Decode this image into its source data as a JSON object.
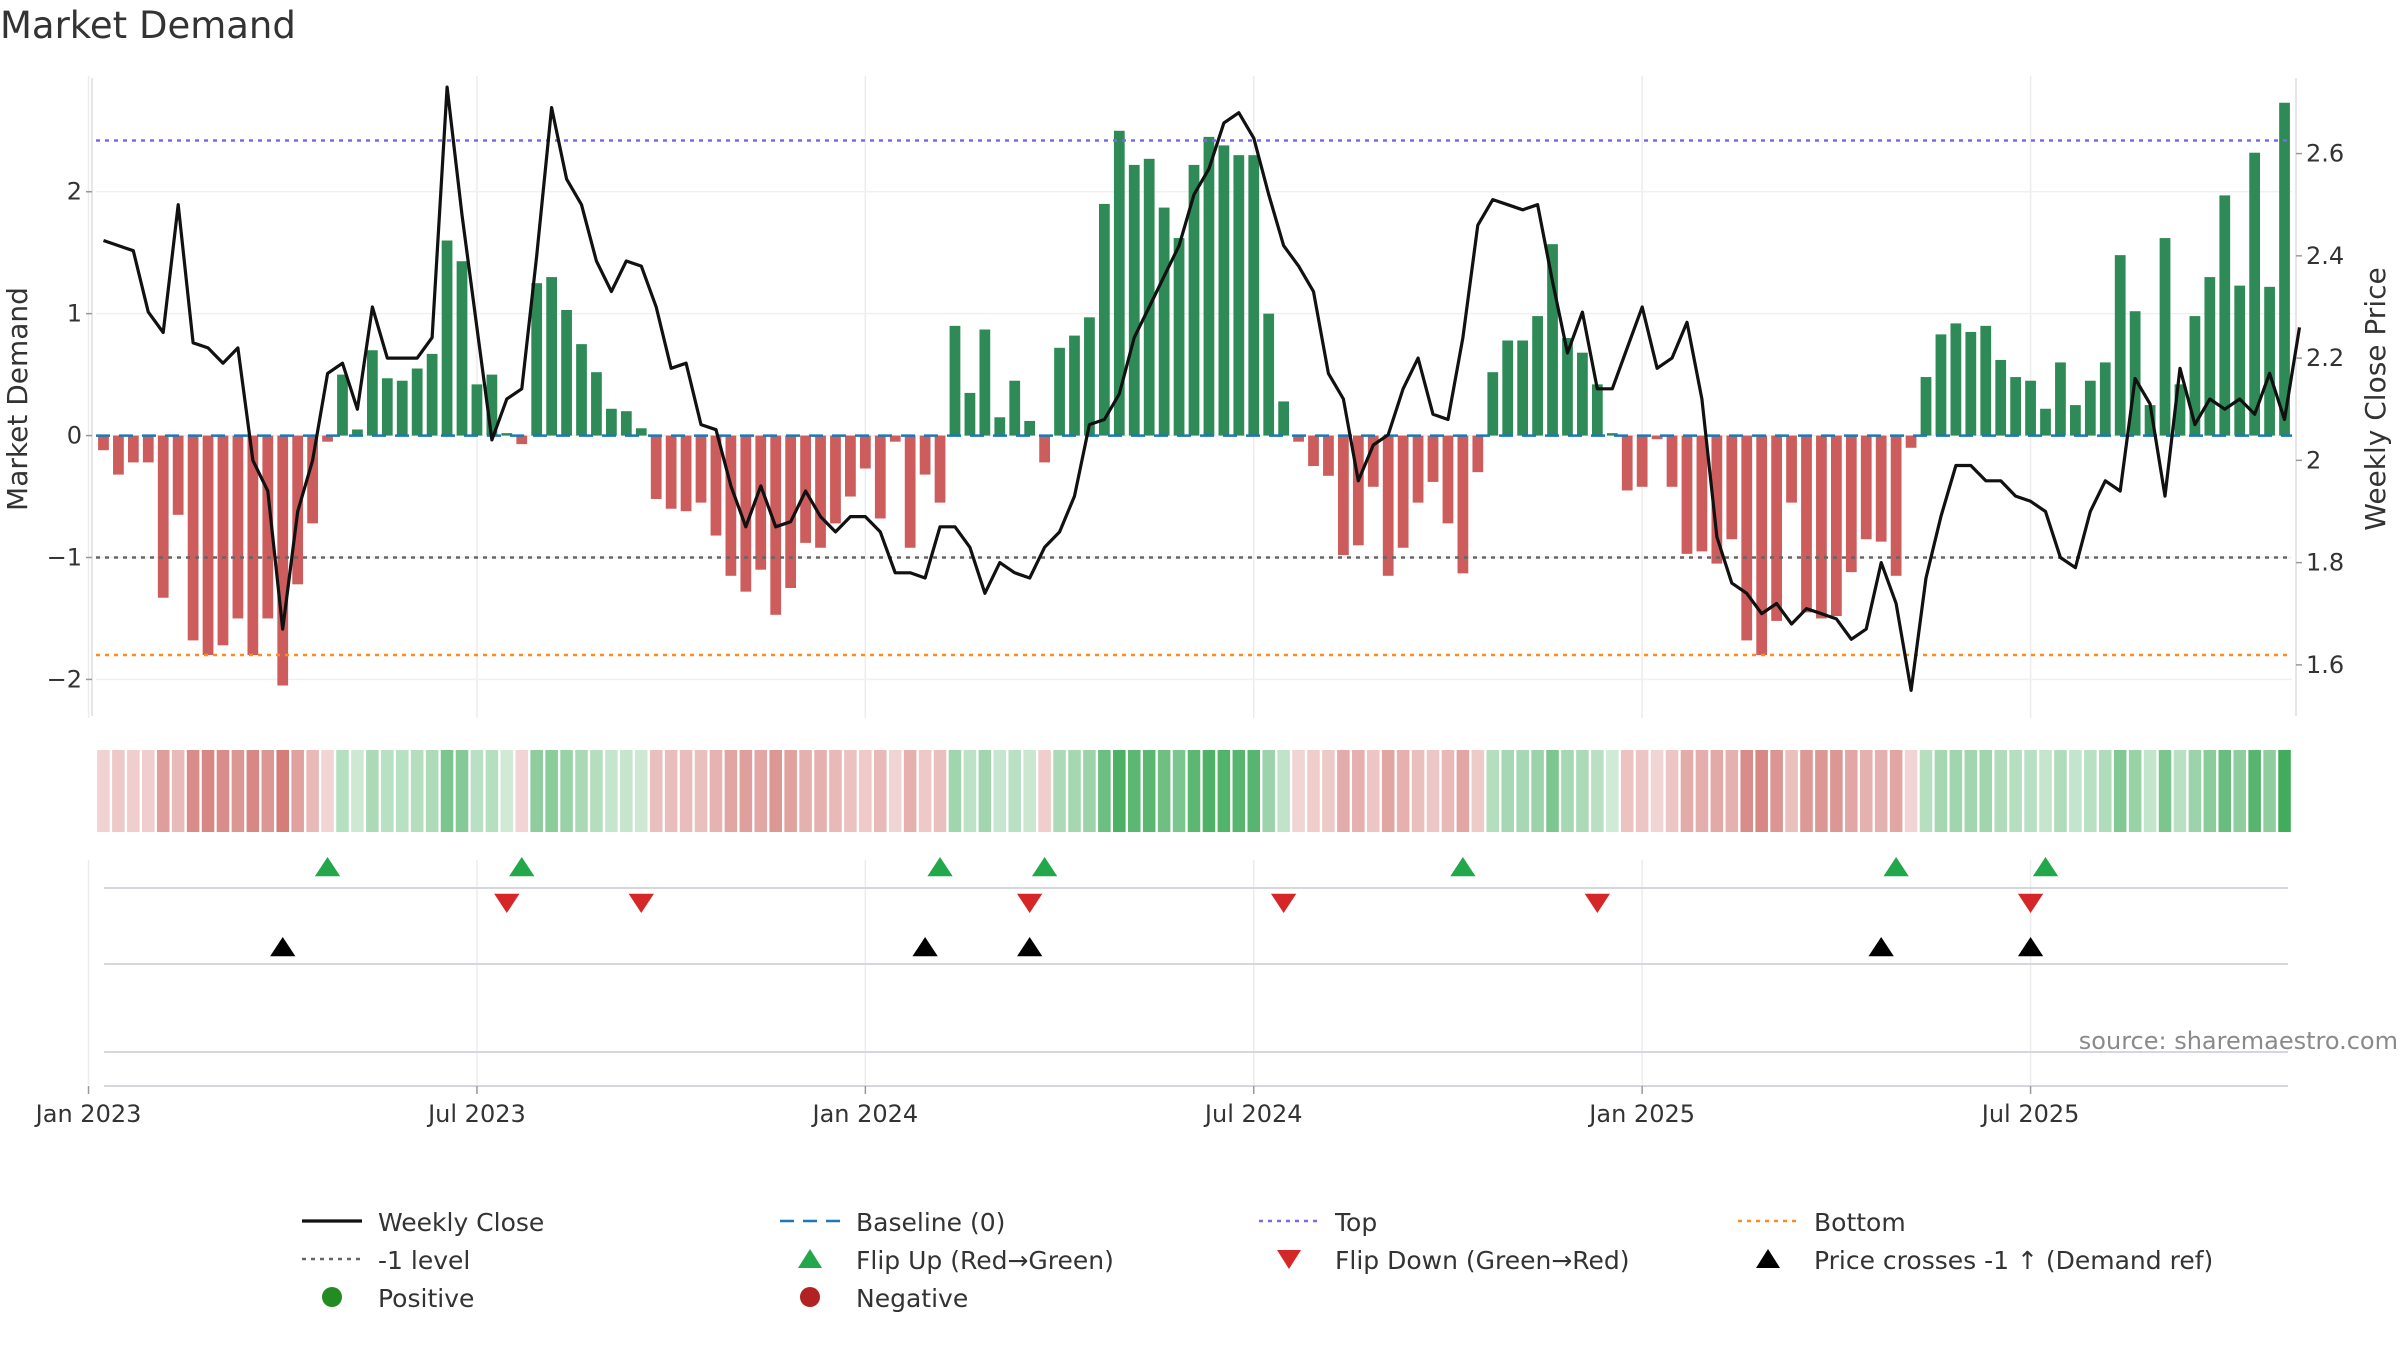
{
  "title": "Market Demand",
  "source": "source: sharemaestro.com",
  "colors": {
    "positive": "#2e8b57",
    "negative": "#cd5c5c",
    "price": "#111111",
    "baseline": "#1f77b4",
    "top": "#7b68ee",
    "bottom": "#ff8c1a",
    "level": "#666666",
    "flip_up": "#22a84a",
    "flip_down": "#d62728",
    "cross": "#000000",
    "dot_positive": "#228b22",
    "dot_negative": "#b22222"
  },
  "chart_data": {
    "type": "bar+line",
    "title": "Market Demand",
    "ylabel_left": "Market Demand",
    "ylabel_right": "Weekly Close Price",
    "ylim_left": [
      -2.3,
      2.9
    ],
    "ylim_right": [
      1.5,
      2.74
    ],
    "yticks_left": [
      "2",
      "1",
      "0",
      "−1",
      "−2"
    ],
    "yticks_left_values": [
      2,
      1,
      0,
      -1,
      -2
    ],
    "yticks_right": [
      "2.6",
      "2.4",
      "2.2",
      "2",
      "1.8",
      "1.6"
    ],
    "yticks_right_values": [
      2.6,
      2.4,
      2.2,
      2.0,
      1.8,
      1.6
    ],
    "xtick_labels": [
      "Jan 2023",
      "Jul 2023",
      "Jan 2024",
      "Jul 2024",
      "Jan 2025",
      "Jul 2025"
    ],
    "xtick_weeks": [
      0,
      26,
      52,
      78,
      104,
      130
    ],
    "first_week_offset": -1,
    "reference_lines": {
      "top": 2.42,
      "bottom": -1.8,
      "level": -1,
      "baseline": 0
    },
    "demand": [
      -0.12,
      -0.32,
      -0.22,
      -0.22,
      -1.33,
      -0.65,
      -1.68,
      -1.8,
      -1.72,
      -1.5,
      -1.8,
      -1.5,
      -2.05,
      -1.22,
      -0.72,
      -0.05,
      0.5,
      0.05,
      0.7,
      0.47,
      0.45,
      0.55,
      0.67,
      1.6,
      1.43,
      0.42,
      0.5,
      0.02,
      -0.07,
      1.25,
      1.3,
      1.03,
      0.75,
      0.52,
      0.22,
      0.2,
      0.06,
      -0.52,
      -0.6,
      -0.62,
      -0.55,
      -0.82,
      -1.15,
      -1.28,
      -1.1,
      -1.47,
      -1.25,
      -0.88,
      -0.92,
      -0.72,
      -0.5,
      -0.27,
      -0.68,
      -0.05,
      -0.92,
      -0.32,
      -0.55,
      0.9,
      0.35,
      0.87,
      0.15,
      0.45,
      0.12,
      -0.22,
      0.72,
      0.82,
      0.97,
      1.9,
      2.5,
      2.22,
      2.27,
      1.87,
      1.62,
      2.22,
      2.45,
      2.38,
      2.3,
      2.3,
      1.0,
      0.28,
      -0.05,
      -0.25,
      -0.33,
      -0.98,
      -0.9,
      -0.42,
      -1.15,
      -0.92,
      -0.55,
      -0.38,
      -0.72,
      -1.13,
      -0.3,
      0.52,
      0.78,
      0.78,
      0.98,
      1.57,
      0.8,
      0.68,
      0.42,
      0.02,
      -0.45,
      -0.42,
      -0.03,
      -0.42,
      -0.97,
      -0.95,
      -1.05,
      -0.85,
      -1.68,
      -1.8,
      -1.52,
      -0.55,
      -1.45,
      -1.5,
      -1.48,
      -1.12,
      -0.85,
      -0.87,
      -1.15,
      -0.1,
      0.48,
      0.83,
      0.92,
      0.85,
      0.9,
      0.62,
      0.48,
      0.45,
      0.22,
      0.6,
      0.25,
      0.45,
      0.6,
      1.48,
      1.02,
      0.25,
      1.62,
      0.42,
      0.98,
      1.3,
      1.97,
      1.23,
      2.32,
      1.22,
      2.73
    ],
    "price": [
      2.43,
      2.42,
      2.41,
      2.29,
      2.25,
      2.5,
      2.23,
      2.22,
      2.19,
      2.22,
      2.0,
      1.94,
      1.67,
      1.9,
      2.0,
      2.17,
      2.19,
      2.1,
      2.3,
      2.2,
      2.2,
      2.2,
      2.24,
      2.73,
      2.48,
      2.26,
      2.04,
      2.12,
      2.14,
      2.4,
      2.69,
      2.55,
      2.5,
      2.39,
      2.33,
      2.39,
      2.38,
      2.3,
      2.18,
      2.19,
      2.07,
      2.06,
      1.95,
      1.87,
      1.95,
      1.87,
      1.88,
      1.94,
      1.89,
      1.86,
      1.89,
      1.89,
      1.86,
      1.78,
      1.78,
      1.77,
      1.87,
      1.87,
      1.83,
      1.74,
      1.8,
      1.78,
      1.77,
      1.83,
      1.86,
      1.93,
      2.07,
      2.08,
      2.13,
      2.24,
      2.3,
      2.36,
      2.42,
      2.52,
      2.57,
      2.66,
      2.68,
      2.63,
      2.52,
      2.42,
      2.38,
      2.33,
      2.17,
      2.12,
      1.96,
      2.03,
      2.05,
      2.14,
      2.2,
      2.09,
      2.08,
      2.24,
      2.46,
      2.51,
      2.5,
      2.49,
      2.5,
      2.35,
      2.21,
      2.29,
      2.14,
      2.14,
      2.22,
      2.3,
      2.18,
      2.2,
      2.27,
      2.12,
      1.85,
      1.76,
      1.74,
      1.7,
      1.72,
      1.68,
      1.71,
      1.7,
      1.69,
      1.65,
      1.67,
      1.8,
      1.72,
      1.55,
      1.77,
      1.89,
      1.99,
      1.99,
      1.96,
      1.96,
      1.93,
      1.92,
      1.9,
      1.81,
      1.79,
      1.9,
      1.96,
      1.94,
      2.16,
      2.11,
      1.93,
      2.18,
      2.07,
      2.12,
      2.1,
      2.12,
      2.09,
      2.17,
      2.08,
      2.26
    ]
  },
  "markers": {
    "flip_up_weeks": [
      15,
      28,
      56,
      63,
      91,
      120,
      130
    ],
    "flip_down_weeks": [
      27,
      36,
      62,
      79,
      100,
      129
    ],
    "price_cross_weeks": [
      12,
      55,
      62,
      119,
      129
    ]
  },
  "legend": [
    {
      "label": "Weekly Close",
      "sym": "line-solid",
      "color": "#111111",
      "col": 0,
      "row": 0
    },
    {
      "label": "Baseline (0)",
      "sym": "line-dash",
      "color": "#1f77b4",
      "col": 1,
      "row": 0
    },
    {
      "label": "Top",
      "sym": "line-dot",
      "color": "#7b68ee",
      "col": 2,
      "row": 0
    },
    {
      "label": "Bottom",
      "sym": "line-dot",
      "color": "#ff8c1a",
      "col": 3,
      "row": 0
    },
    {
      "label": "-1 level",
      "sym": "line-dot",
      "color": "#666666",
      "col": 0,
      "row": 1
    },
    {
      "label": "Flip Up (Red→Green)",
      "sym": "tri-up",
      "color": "#22a84a",
      "col": 1,
      "row": 1
    },
    {
      "label": "Flip Down (Green→Red)",
      "sym": "tri-down",
      "color": "#d62728",
      "col": 2,
      "row": 1
    },
    {
      "label": "Price crosses -1 ↑ (Demand ref)",
      "sym": "tri-up",
      "color": "#000000",
      "col": 3,
      "row": 1
    },
    {
      "label": "Positive",
      "sym": "dot",
      "color": "#228b22",
      "col": 0,
      "row": 2
    },
    {
      "label": "Negative",
      "sym": "dot",
      "color": "#b22222",
      "col": 1,
      "row": 2
    }
  ]
}
